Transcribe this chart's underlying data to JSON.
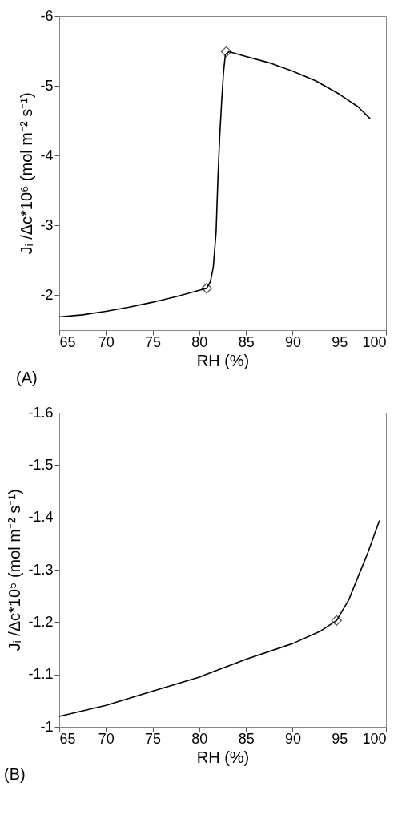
{
  "chart_data": [
    {
      "type": "line",
      "xlabel": "RH (%)",
      "ylabel": "Jᵢ /Δc*10⁶ (mol m⁻² s⁻¹)",
      "annotations": [
        "(A)"
      ],
      "xlim": [
        65,
        100
      ],
      "xticks": [
        65,
        70,
        75,
        80,
        85,
        90,
        95,
        100
      ],
      "ylim": [
        -1.5,
        -6
      ],
      "yticks": [
        -6,
        -5,
        -4,
        -3,
        -2
      ],
      "series": [
        {
          "color": "#000000",
          "x": [
            65,
            67.5,
            70,
            72.5,
            75,
            77.5,
            80,
            80.8,
            81.2,
            81.5,
            81.8,
            82,
            82.2,
            82.4,
            82.6,
            82.8,
            83.2,
            85,
            87.5,
            90,
            92.5,
            95,
            97,
            98.3
          ],
          "values": [
            -1.69,
            -1.72,
            -1.77,
            -1.83,
            -1.9,
            -1.98,
            -2.07,
            -2.1,
            -2.2,
            -2.4,
            -2.9,
            -3.68,
            -4.3,
            -4.78,
            -5.2,
            -5.45,
            -5.49,
            -5.42,
            -5.33,
            -5.21,
            -5.07,
            -4.88,
            -4.7,
            -4.53
          ]
        },
        {
          "type": "scatter",
          "color": "#000000",
          "marker": "diamond",
          "x": [
            80.8,
            82.9
          ],
          "values": [
            -2.1,
            -5.49
          ]
        }
      ]
    },
    {
      "type": "line",
      "xlabel": "RH (%)",
      "ylabel": "Jᵢ /Δc*10⁵ (mol m⁻² s⁻¹)",
      "annotations": [
        "(B)"
      ],
      "xlim": [
        65,
        100
      ],
      "xticks": [
        65,
        70,
        75,
        80,
        85,
        90,
        95,
        100
      ],
      "ylim": [
        -1,
        -1.6
      ],
      "yticks": [
        -1.6,
        -1.5,
        -1.4,
        -1.3,
        -1.2,
        -1.1,
        -1
      ],
      "series": [
        {
          "color": "#000000",
          "x": [
            65,
            70,
            75,
            80,
            85,
            90,
            93,
            94.7,
            96,
            97,
            98,
            99.3
          ],
          "values": [
            -1.02,
            -1.041,
            -1.068,
            -1.095,
            -1.129,
            -1.159,
            -1.183,
            -1.203,
            -1.242,
            -1.286,
            -1.33,
            -1.394
          ]
        },
        {
          "type": "scatter",
          "color": "#000000",
          "marker": "diamond",
          "x": [
            94.7
          ],
          "values": [
            -1.203
          ]
        }
      ]
    }
  ]
}
